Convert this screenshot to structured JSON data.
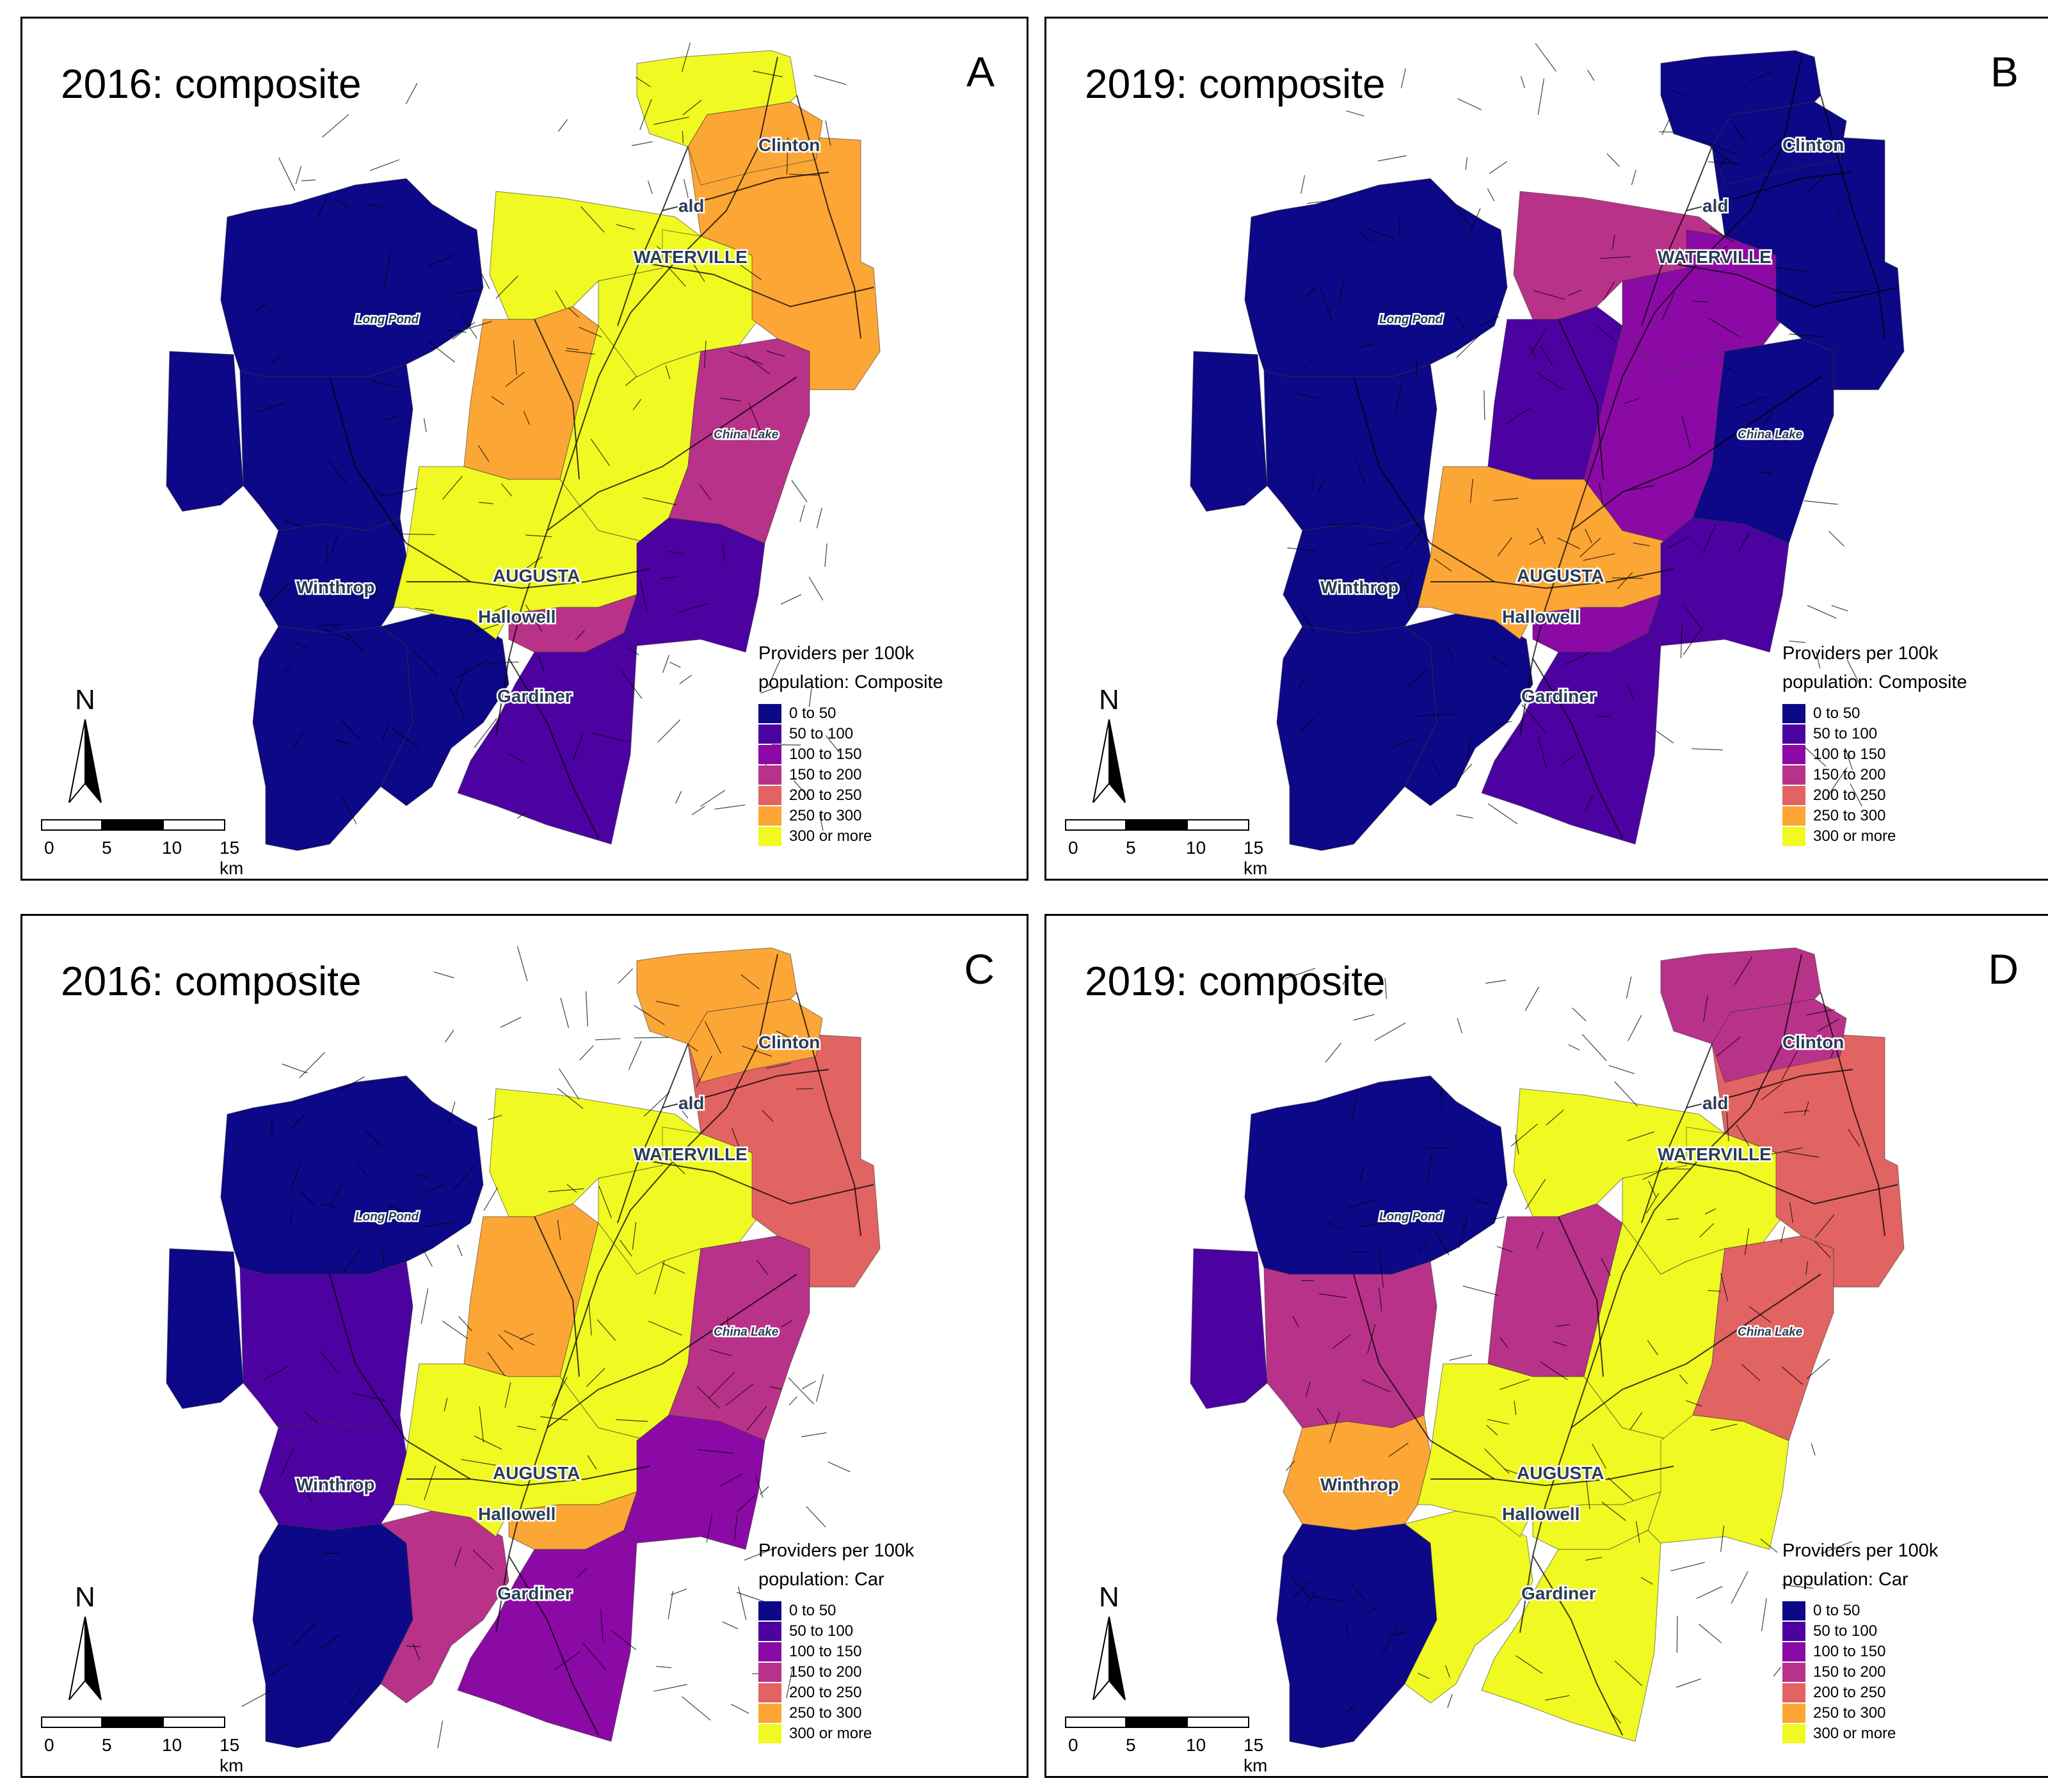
{
  "legend_colors": {
    "0 to 50": "#0d0887",
    "50 to 100": "#4c02a1",
    "100 to 150": "#8b0aa5",
    "150 to 200": "#b93289",
    "200 to 250": "#e16462",
    "250 to 300": "#fca636",
    "300 or more": "#f0f921"
  },
  "legend_bins": [
    "0 to 50",
    "50 to 100",
    "100 to 150",
    "150 to 200",
    "200 to 250",
    "250 to 300",
    "300 or more"
  ],
  "scale": {
    "ticks": [
      "0",
      "5",
      "10",
      "15 km"
    ]
  },
  "north_label": "N",
  "places": [
    "Clinton",
    "ald",
    "WATERVILLE",
    "Long Pond",
    "China Lake",
    "AUGUSTA",
    "Winthrop",
    "Hallowell",
    "Gardiner"
  ],
  "panels": [
    {
      "id": "A",
      "letter": "A",
      "title": "2016: composite",
      "legend_title_line1": "Providers per 100k",
      "legend_title_line2": "population: Composite",
      "regions": {
        "far_north": "300 or more",
        "clinton": "250 to 300",
        "east_north": "250 to 300",
        "waterville": "300 or more",
        "waterville_east": "300 or more",
        "west_mid": "250 to 300",
        "center": "300 or more",
        "china_lake": "150 to 200",
        "augusta": "300 or more",
        "southeast": "50 to 100",
        "hallowell_strip": "150 to 200",
        "gardiner": "50 to 100",
        "gardiner_west": "0 to 50",
        "long_pond": "0 to 50",
        "west": "0 to 50",
        "winthrop": "0 to 50",
        "southwest": "0 to 50",
        "far_west": "0 to 50"
      }
    },
    {
      "id": "B",
      "letter": "B",
      "title": "2019: composite",
      "legend_title_line1": "Providers per 100k",
      "legend_title_line2": "population: Composite",
      "regions": {
        "far_north": "0 to 50",
        "clinton": "0 to 50",
        "east_north": "0 to 50",
        "waterville": "150 to 200",
        "waterville_east": "100 to 150",
        "west_mid": "50 to 100",
        "center": "100 to 150",
        "china_lake": "0 to 50",
        "augusta": "250 to 300",
        "southeast": "50 to 100",
        "hallowell_strip": "100 to 150",
        "gardiner": "50 to 100",
        "gardiner_west": "0 to 50",
        "long_pond": "0 to 50",
        "west": "0 to 50",
        "winthrop": "0 to 50",
        "southwest": "0 to 50",
        "far_west": "0 to 50"
      }
    },
    {
      "id": "C",
      "letter": "C",
      "title": "2016: composite",
      "legend_title_line1": "Providers per 100k",
      "legend_title_line2": "population: Car",
      "regions": {
        "far_north": "250 to 300",
        "clinton": "250 to 300",
        "east_north": "200 to 250",
        "waterville": "300 or more",
        "waterville_east": "300 or more",
        "west_mid": "250 to 300",
        "center": "300 or more",
        "china_lake": "150 to 200",
        "augusta": "300 or more",
        "southeast": "100 to 150",
        "hallowell_strip": "250 to 300",
        "gardiner": "100 to 150",
        "gardiner_west": "150 to 200",
        "long_pond": "0 to 50",
        "west": "50 to 100",
        "winthrop": "50 to 100",
        "southwest": "0 to 50",
        "far_west": "0 to 50"
      }
    },
    {
      "id": "D",
      "letter": "D",
      "title": "2019: composite",
      "legend_title_line1": "Providers per 100k",
      "legend_title_line2": "population: Car",
      "regions": {
        "far_north": "150 to 200",
        "clinton": "150 to 200",
        "east_north": "200 to 250",
        "waterville": "300 or more",
        "waterville_east": "300 or more",
        "west_mid": "150 to 200",
        "center": "300 or more",
        "china_lake": "200 to 250",
        "augusta": "300 or more",
        "southeast": "300 or more",
        "hallowell_strip": "300 or more",
        "gardiner": "300 or more",
        "gardiner_west": "300 or more",
        "long_pond": "0 to 50",
        "west": "150 to 200",
        "winthrop": "250 to 300",
        "southwest": "0 to 50",
        "far_west": "50 to 100"
      }
    }
  ]
}
